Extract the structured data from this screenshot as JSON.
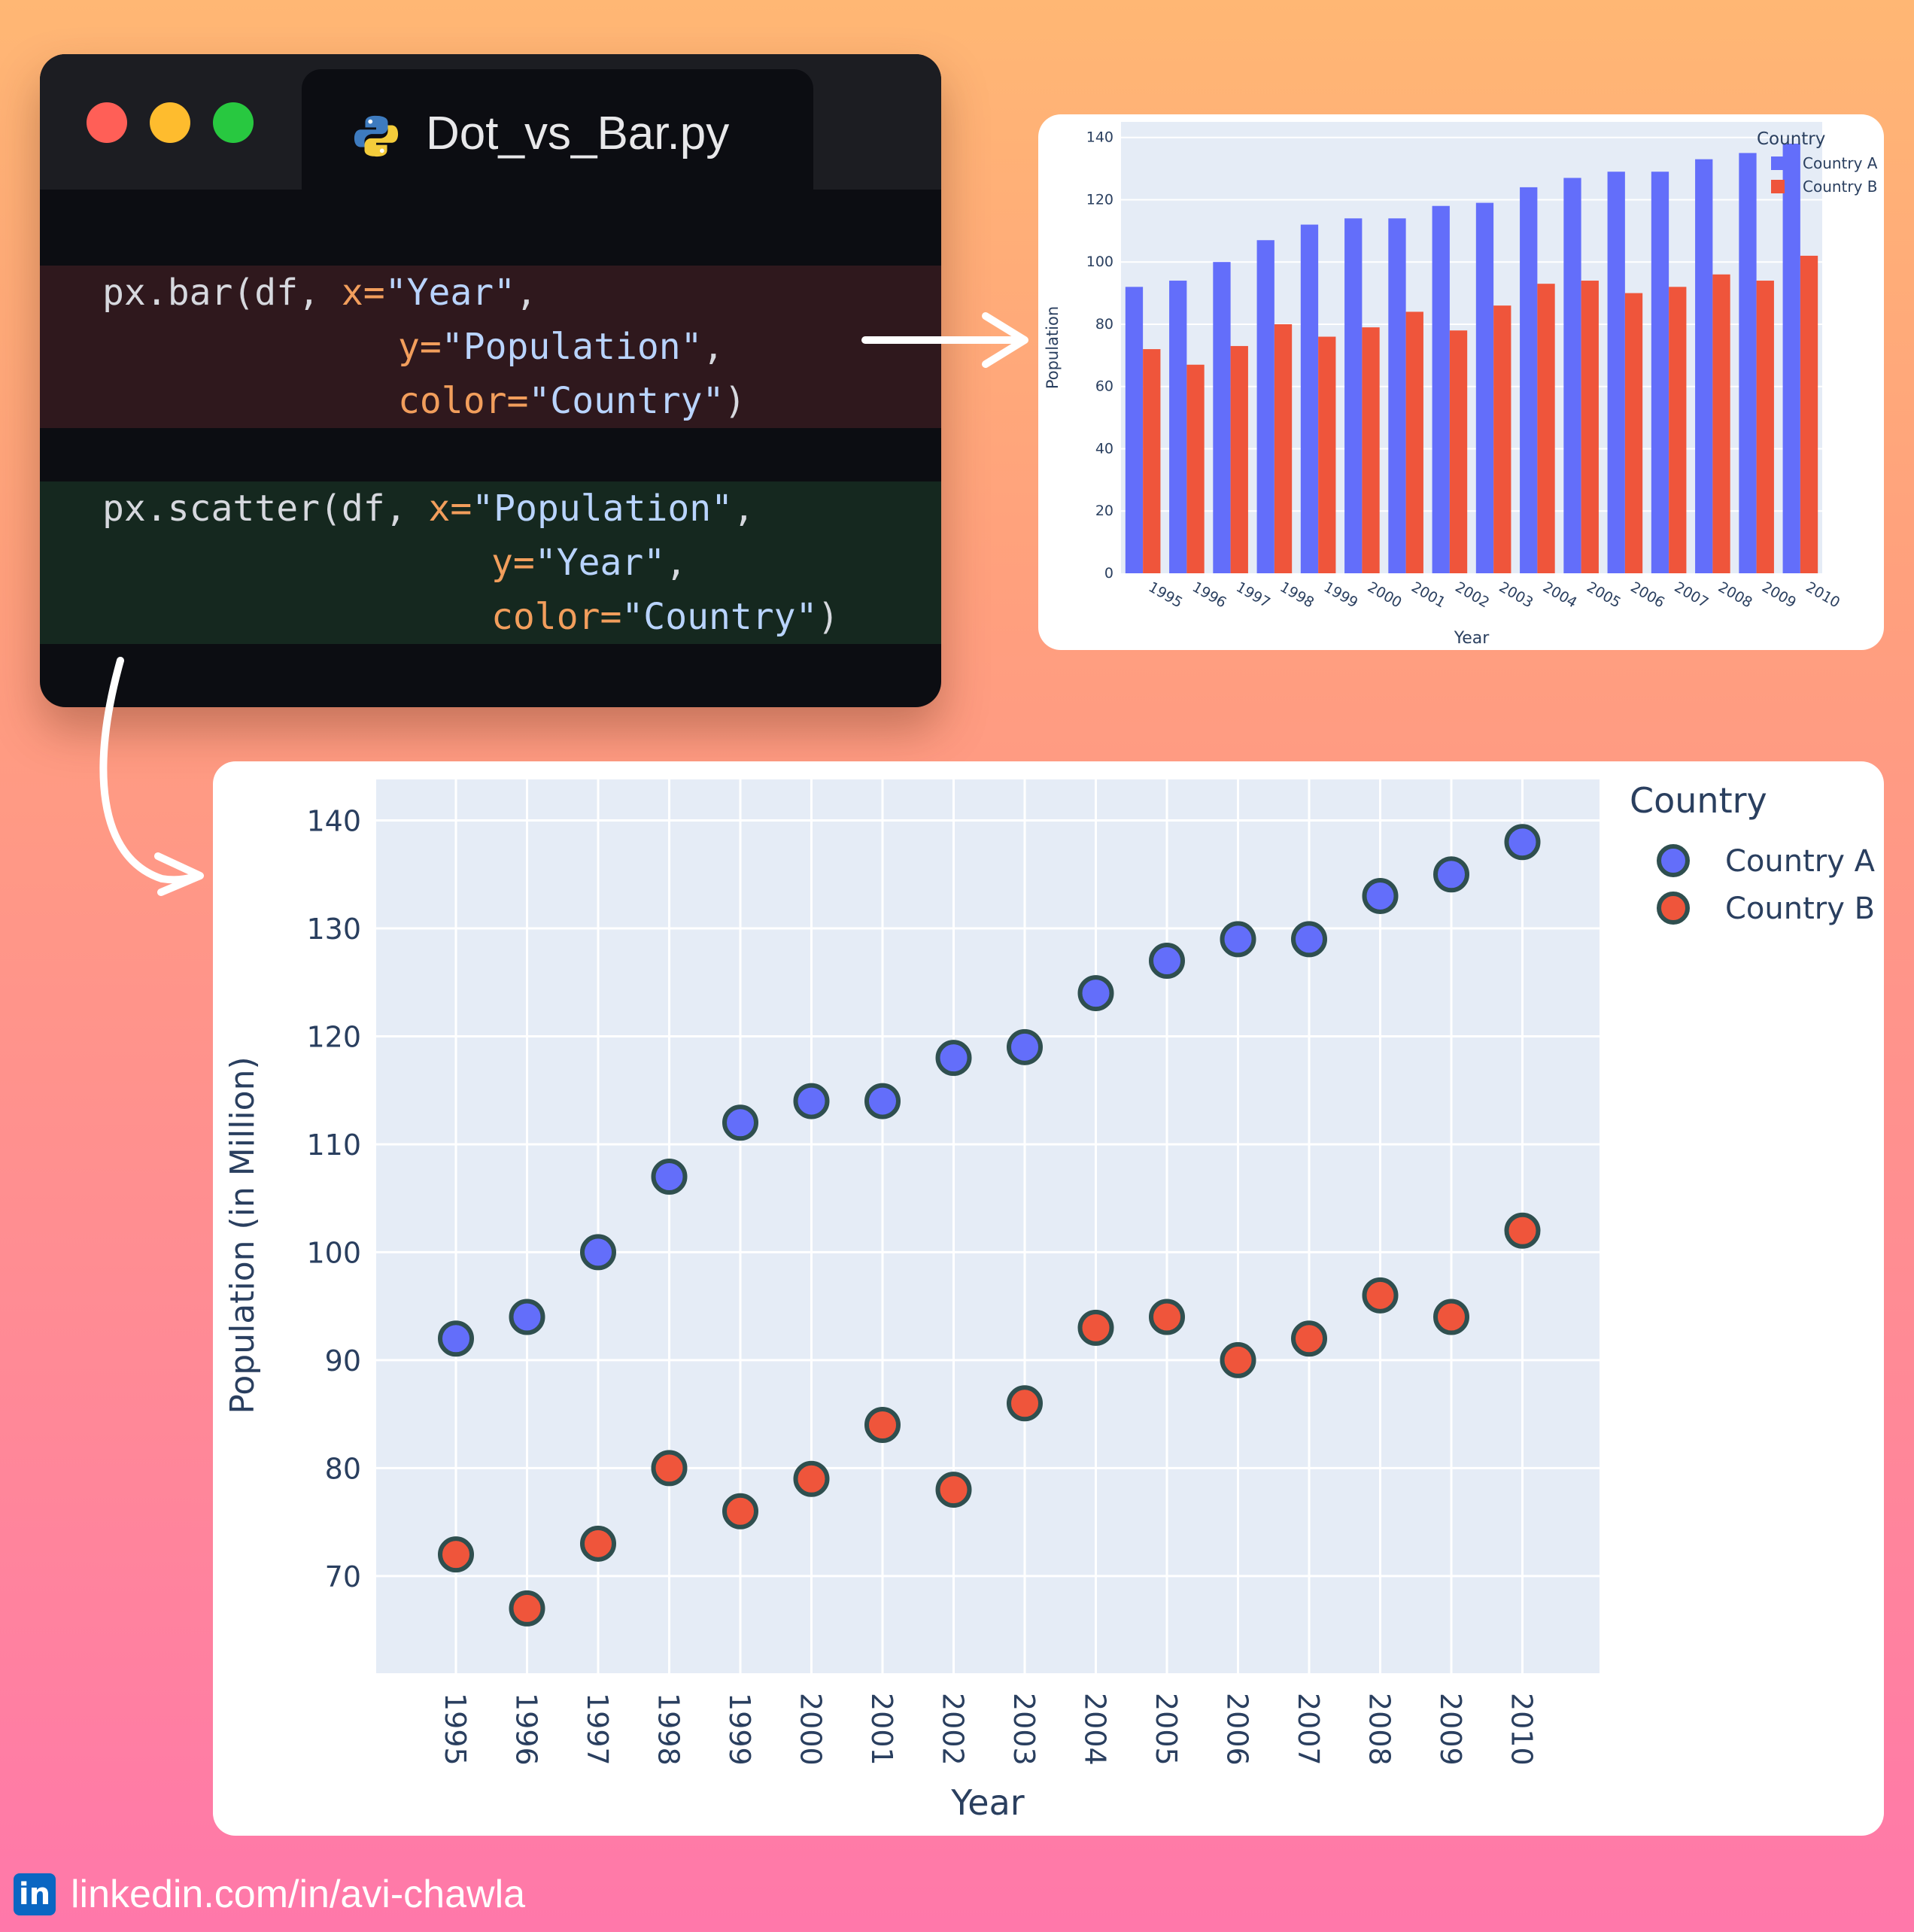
{
  "window": {
    "tab_title": "Dot_vs_Bar.py",
    "tab_icon": "python-icon"
  },
  "code": {
    "bar": {
      "line1": {
        "fn": "px.bar(df, ",
        "kw": "x=",
        "str": "\"Year\"",
        "tail": ","
      },
      "line2": {
        "kw": "y=",
        "str": "\"Population\"",
        "tail": ","
      },
      "line3": {
        "kw": "color=",
        "str": "\"Country\"",
        "tail": ")"
      }
    },
    "scatter": {
      "line1": {
        "fn": "px.scatter(df, ",
        "kw": "x=",
        "str": "\"Population\"",
        "tail": ","
      },
      "line2": {
        "kw": "y=",
        "str": "\"Year\"",
        "tail": ","
      },
      "line3": {
        "kw": "color=",
        "str": "\"Country\"",
        "tail": ")"
      }
    }
  },
  "colors": {
    "country_a": "#636efa",
    "country_b": "#ef553b",
    "plot_bg": "#e5ecf6",
    "marker_outline": "#2f4f4f"
  },
  "chart_data": [
    {
      "type": "bar",
      "categories": [
        "1995",
        "1996",
        "1997",
        "1998",
        "1999",
        "2000",
        "2001",
        "2002",
        "2003",
        "2004",
        "2005",
        "2006",
        "2007",
        "2008",
        "2009",
        "2010"
      ],
      "series": [
        {
          "name": "Country A",
          "values": [
            92,
            94,
            100,
            107,
            112,
            114,
            114,
            118,
            119,
            124,
            127,
            129,
            129,
            133,
            135,
            138
          ]
        },
        {
          "name": "Country B",
          "values": [
            72,
            67,
            73,
            80,
            76,
            79,
            84,
            78,
            86,
            93,
            94,
            90,
            92,
            96,
            94,
            102
          ]
        }
      ],
      "xlabel": "Year",
      "ylabel": "Population",
      "ylim": [
        0,
        145
      ],
      "yticks": [
        0,
        20,
        40,
        60,
        80,
        100,
        120,
        140
      ],
      "legend_title": "Country",
      "legend_position": "top-right",
      "grid": true
    },
    {
      "type": "scatter",
      "categories": [
        "1995",
        "1996",
        "1997",
        "1998",
        "1999",
        "2000",
        "2001",
        "2002",
        "2003",
        "2004",
        "2005",
        "2006",
        "2007",
        "2008",
        "2009",
        "2010"
      ],
      "series": [
        {
          "name": "Country A",
          "values": [
            92,
            94,
            100,
            107,
            112,
            114,
            114,
            118,
            119,
            124,
            127,
            129,
            129,
            133,
            135,
            138
          ]
        },
        {
          "name": "Country B",
          "values": [
            72,
            67,
            73,
            80,
            76,
            79,
            84,
            78,
            86,
            93,
            94,
            90,
            92,
            96,
            94,
            102
          ]
        }
      ],
      "xlabel": "Year",
      "ylabel": "Population (in Million)",
      "ylim": [
        61,
        143.8
      ],
      "yticks": [
        70,
        80,
        90,
        100,
        110,
        120,
        130,
        140
      ],
      "legend_title": "Country",
      "legend_position": "top-right",
      "grid": true
    }
  ],
  "footer": {
    "text": "linkedin.com/in/avi-chawla",
    "icon": "linkedin-icon",
    "icon_label": "in"
  }
}
